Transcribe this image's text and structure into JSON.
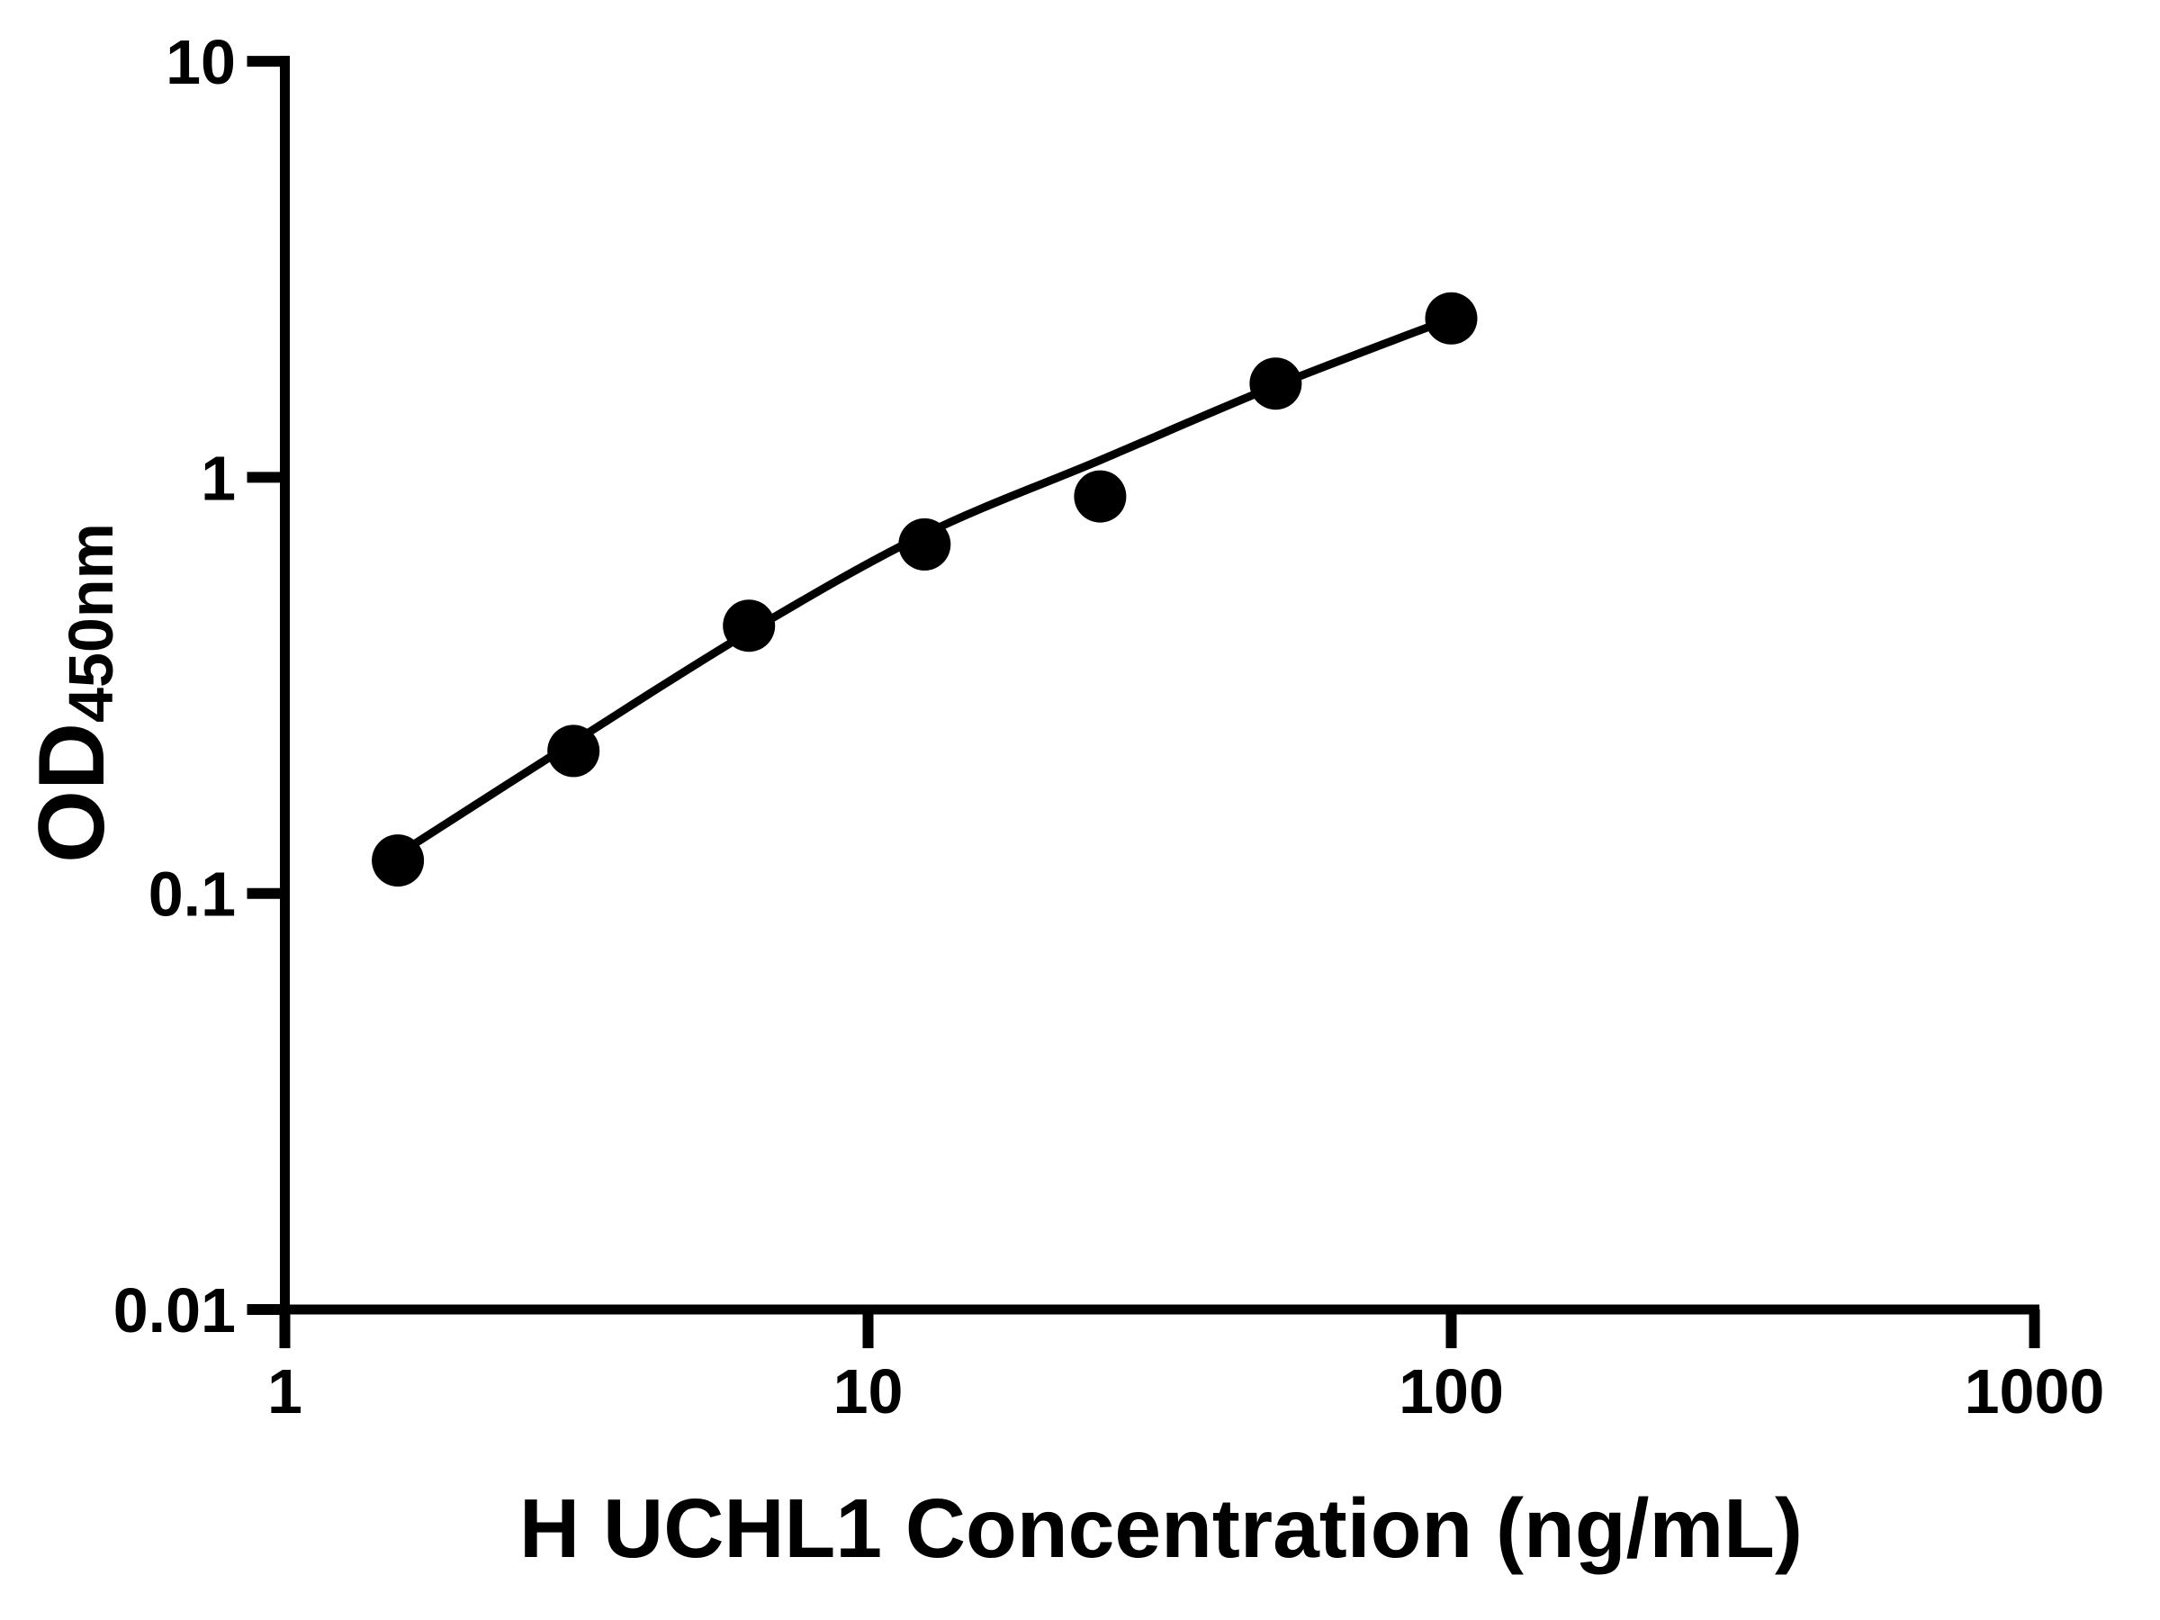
{
  "figure": {
    "background_color": "#ffffff",
    "ink_color": "#000000"
  },
  "chart_data": {
    "type": "scatter",
    "title": "",
    "xlabel": "H UCHL1 Concentration (ng/mL)",
    "ylabel": "OD450nm",
    "ylabel_main": "OD",
    "ylabel_sub": "450nm",
    "x_scale": "log10",
    "y_scale": "log10",
    "xlim": [
      1,
      1000
    ],
    "ylim": [
      0.01,
      10
    ],
    "x_ticks": [
      1,
      10,
      100,
      1000
    ],
    "x_tick_labels": [
      "1",
      "10",
      "100",
      "1000"
    ],
    "y_ticks": [
      10,
      1,
      0.1,
      0.01
    ],
    "y_tick_labels": [
      "10",
      "1",
      "0.1",
      "0.01"
    ],
    "grid": false,
    "legend": "none",
    "series": [
      {
        "name": "standards",
        "marker": "filled-circle",
        "color": "#000000",
        "x": [
          1.5625,
          3.125,
          6.25,
          12.5,
          25,
          50,
          100
        ],
        "y": [
          0.12,
          0.22,
          0.44,
          0.69,
          0.9,
          1.68,
          2.41
        ]
      }
    ],
    "fit_curve": {
      "name": "fitted-standard-curve",
      "color": "#000000",
      "x": [
        1.5625,
        3.125,
        6.25,
        12.5,
        25,
        50,
        100
      ],
      "y": [
        0.124,
        0.231,
        0.425,
        0.73,
        1.1,
        1.66,
        2.41
      ]
    }
  }
}
